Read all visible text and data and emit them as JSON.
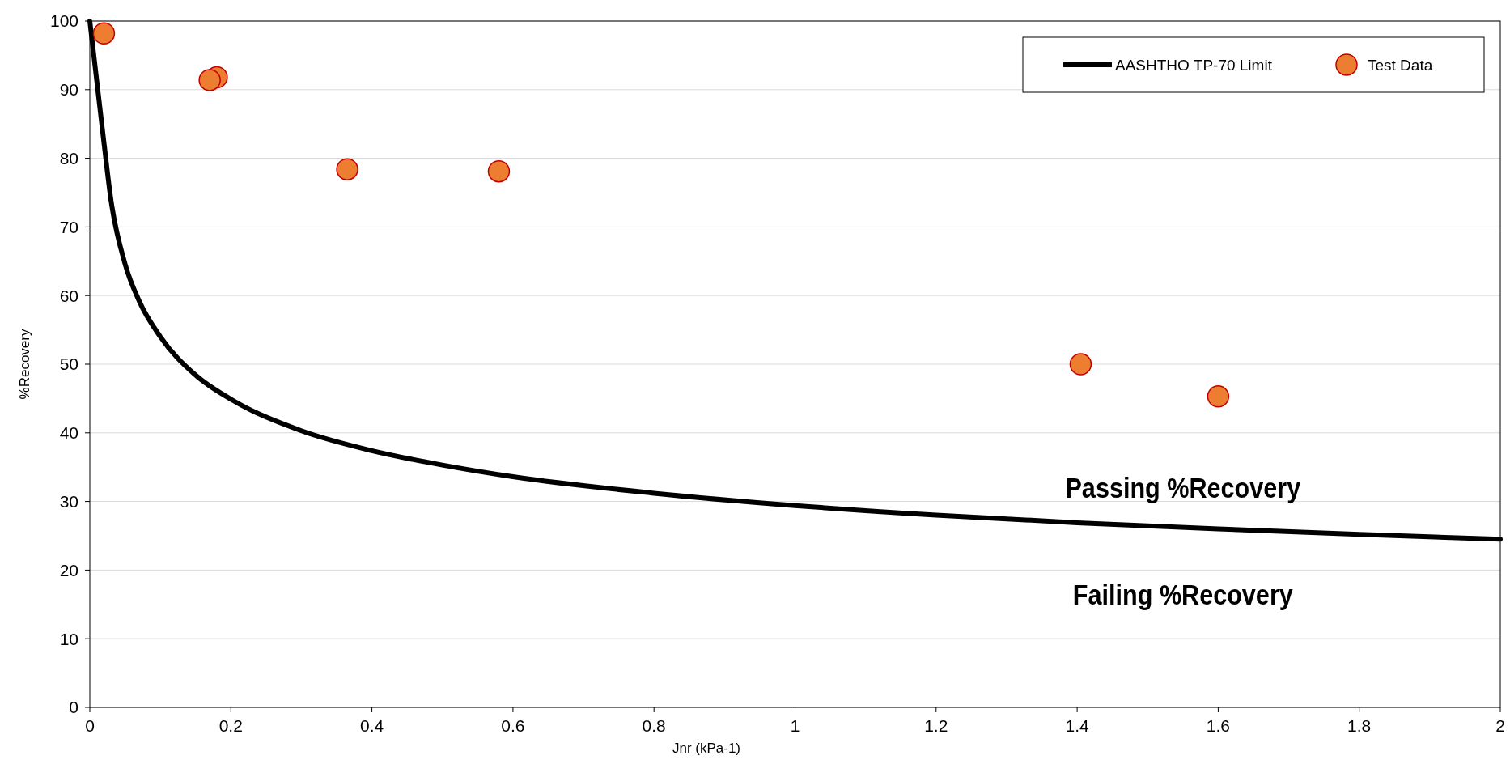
{
  "chart_data": {
    "type": "scatter",
    "xlabel": "Jnr (kPa-1)",
    "ylabel": "%Recovery",
    "xlim": [
      0,
      2
    ],
    "xticks": [
      0,
      0.2,
      0.4,
      0.6,
      0.8,
      1,
      1.2,
      1.4,
      1.6,
      1.8,
      2
    ],
    "ylim": [
      0,
      100
    ],
    "yticks": [
      0,
      10,
      20,
      30,
      40,
      50,
      60,
      70,
      80,
      90,
      100
    ],
    "grid": "y",
    "legend": "top right",
    "marker": "circle",
    "series": [
      {
        "name": "AASHTHO TP-70 Limit",
        "type": "line",
        "color": "#000000",
        "line_style": "solid",
        "marker": "none",
        "x": [
          0,
          0.02,
          0.03,
          0.05,
          0.07,
          0.1,
          0.15,
          0.2,
          0.3,
          0.4,
          0.5,
          0.6,
          0.8,
          1,
          1.2,
          1.4,
          1.6,
          1.8,
          2
        ],
        "values": [
          100,
          82.3,
          73.9,
          64.6,
          59.2,
          54,
          48.4,
          44.9,
          40.3,
          37.4,
          35.3,
          33.6,
          31.2,
          29.4,
          28,
          26.9,
          26,
          25.2,
          24.5
        ]
      },
      {
        "name": "Test Data",
        "type": "scatter",
        "color": "#ed7d31",
        "x": [
          0.02,
          0.17,
          0.18,
          0.365,
          0.58,
          1.405,
          1.6
        ],
        "values": [
          98.2,
          91.4,
          91.8,
          78.4,
          78.1,
          50,
          45.3
        ]
      }
    ],
    "annotations": [
      "Passing %Recovery",
      "Failing %Recovery"
    ]
  }
}
